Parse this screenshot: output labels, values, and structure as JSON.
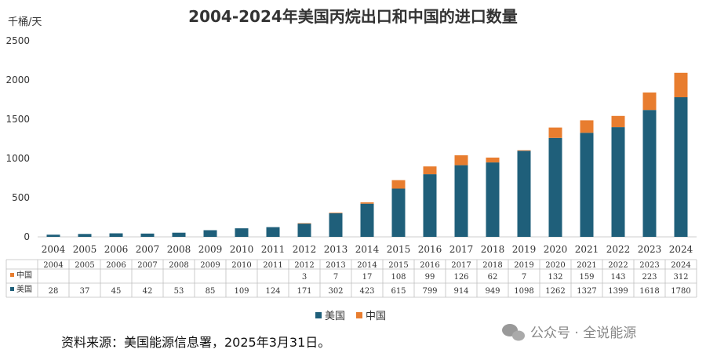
{
  "chart_data": {
    "type": "bar",
    "stacked": true,
    "title": "2004-2024年美国丙烷出口和中国的进口数量",
    "ylabel": "千桶/天",
    "ylim": [
      0,
      2500
    ],
    "yticks": [
      0,
      500,
      1000,
      1500,
      2000,
      2500
    ],
    "grid": false,
    "legend_position": "bottom",
    "categories": [
      "2004",
      "2005",
      "2006",
      "2007",
      "2008",
      "2009",
      "2010",
      "2011",
      "2012",
      "2013",
      "2014",
      "2015",
      "2016",
      "2017",
      "2018",
      "2019",
      "2020",
      "2021",
      "2022",
      "2023",
      "2024"
    ],
    "series": [
      {
        "name": "美国",
        "color": "#1f5f7a",
        "values": [
          28,
          37,
          45,
          42,
          53,
          85,
          109,
          124,
          171,
          302,
          423,
          615,
          799,
          914,
          949,
          1098,
          1262,
          1327,
          1399,
          1618,
          1780
        ]
      },
      {
        "name": "中国",
        "color": "#e87d2f",
        "values": [
          null,
          null,
          null,
          null,
          null,
          null,
          null,
          null,
          3,
          7,
          17,
          108,
          99,
          126,
          62,
          7,
          132,
          159,
          143,
          223,
          312
        ]
      }
    ],
    "table": {
      "rows": [
        {
          "label": "中国",
          "series_index": 1
        },
        {
          "label": "美国",
          "series_index": 0
        }
      ]
    }
  },
  "footer": {
    "source": "资料来源：美国能源信息署，2025年3月31日。",
    "watermark": "公众号 · 全说能源"
  }
}
